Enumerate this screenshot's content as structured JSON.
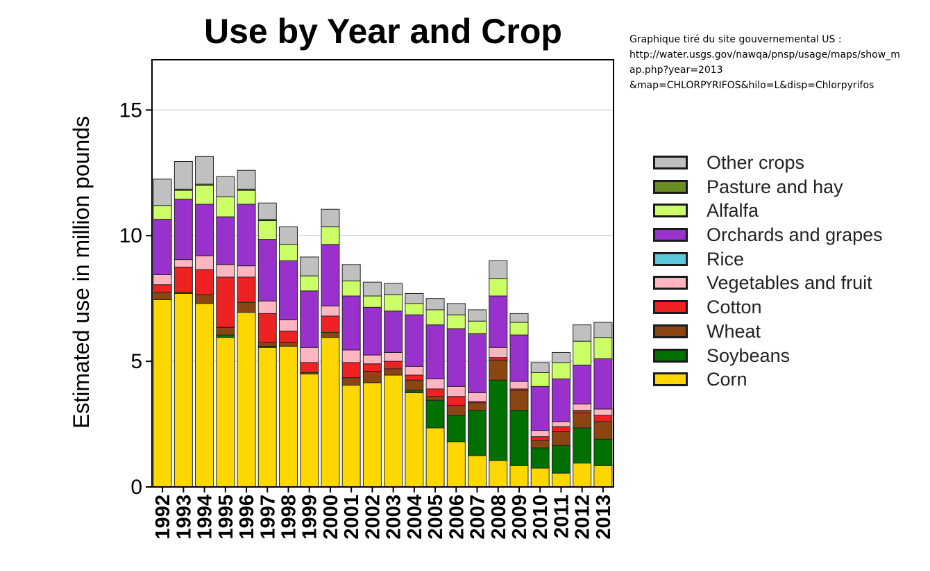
{
  "note": {
    "lines": [
      "Graphique tiré du site gouvernemental US :",
      "http://water.usgs.gov/nawqa/pnsp/usage/maps/show_m",
      "ap.php?year=2013",
      "&map=CHLORPYRIFOS&hilo=L&disp=Chlorpyrifos"
    ]
  },
  "chart_data": {
    "type": "bar",
    "stacked": true,
    "title": "Use by Year and Crop",
    "xlabel": "",
    "ylabel": "Estimated use in million pounds",
    "ylim": [
      0,
      17
    ],
    "yticks": [
      0,
      5,
      10,
      15
    ],
    "grid": true,
    "legend_position": "right",
    "categories": [
      "1992",
      "1993",
      "1994",
      "1995",
      "1996",
      "1997",
      "1998",
      "1999",
      "2000",
      "2001",
      "2002",
      "2003",
      "2004",
      "2005",
      "2006",
      "2007",
      "2008",
      "2009",
      "2010",
      "2011",
      "2012",
      "2013"
    ],
    "series": [
      {
        "name": "Corn",
        "color": "#FFD700",
        "values": [
          7.45,
          7.7,
          7.3,
          5.95,
          6.95,
          5.55,
          5.6,
          4.5,
          5.95,
          4.05,
          4.15,
          4.45,
          3.75,
          2.35,
          1.8,
          1.25,
          1.05,
          0.85,
          0.75,
          0.55,
          0.95,
          0.85
        ]
      },
      {
        "name": "Soybeans",
        "color": "#007000",
        "values": [
          0,
          0,
          0,
          0.1,
          0,
          0.05,
          0,
          0,
          0,
          0,
          0,
          0,
          0.1,
          1.1,
          1.05,
          1.8,
          3.2,
          2.2,
          0.8,
          1.1,
          1.4,
          1.05
        ]
      },
      {
        "name": "Wheat",
        "color": "#8B4513",
        "values": [
          0.3,
          0.05,
          0.35,
          0.3,
          0.4,
          0.15,
          0.15,
          0.05,
          0.2,
          0.3,
          0.45,
          0.25,
          0.4,
          0.15,
          0.4,
          0.3,
          0.8,
          0.8,
          0.3,
          0.55,
          0.6,
          0.7
        ]
      },
      {
        "name": "Cotton",
        "color": "#EE2222",
        "values": [
          0.3,
          1.0,
          1.0,
          2.0,
          1.0,
          1.15,
          0.45,
          0.4,
          0.65,
          0.6,
          0.3,
          0.3,
          0.2,
          0.3,
          0.35,
          0.05,
          0.1,
          0.05,
          0.15,
          0.2,
          0.1,
          0.25
        ]
      },
      {
        "name": "Vegetables and fruit",
        "color": "#FFB6C1",
        "values": [
          0.4,
          0.3,
          0.55,
          0.5,
          0.45,
          0.5,
          0.45,
          0.6,
          0.4,
          0.5,
          0.35,
          0.35,
          0.35,
          0.4,
          0.4,
          0.35,
          0.4,
          0.3,
          0.25,
          0.2,
          0.25,
          0.25
        ]
      },
      {
        "name": "Rice",
        "color": "#5BC8DC",
        "values": [
          0,
          0,
          0,
          0,
          0,
          0,
          0,
          0,
          0,
          0,
          0,
          0,
          0,
          0,
          0,
          0,
          0,
          0,
          0,
          0,
          0,
          0
        ]
      },
      {
        "name": "Orchards and grapes",
        "color": "#9932CC",
        "values": [
          2.2,
          2.4,
          2.05,
          1.9,
          2.45,
          2.45,
          2.35,
          2.25,
          2.45,
          2.15,
          1.9,
          1.65,
          2.05,
          2.15,
          2.3,
          2.35,
          2.05,
          1.85,
          1.75,
          1.7,
          1.55,
          2.0
        ]
      },
      {
        "name": "Alfalfa",
        "color": "#CCFF66",
        "values": [
          0.55,
          0.35,
          0.75,
          0.8,
          0.55,
          0.75,
          0.65,
          0.6,
          0.7,
          0.6,
          0.45,
          0.65,
          0.45,
          0.6,
          0.55,
          0.5,
          0.7,
          0.5,
          0.55,
          0.65,
          0.95,
          0.85
        ]
      },
      {
        "name": "Pasture and hay",
        "color": "#6B8E23",
        "values": [
          0,
          0.05,
          0.05,
          0,
          0.05,
          0.05,
          0,
          0,
          0,
          0,
          0,
          0,
          0,
          0,
          0,
          0,
          0,
          0,
          0,
          0,
          0,
          0
        ]
      },
      {
        "name": "Other crops",
        "color": "#C0C0C0",
        "values": [
          1.05,
          1.1,
          1.1,
          0.8,
          0.75,
          0.65,
          0.7,
          0.75,
          0.7,
          0.65,
          0.55,
          0.45,
          0.4,
          0.45,
          0.45,
          0.45,
          0.7,
          0.35,
          0.4,
          0.4,
          0.65,
          0.6
        ]
      }
    ]
  }
}
